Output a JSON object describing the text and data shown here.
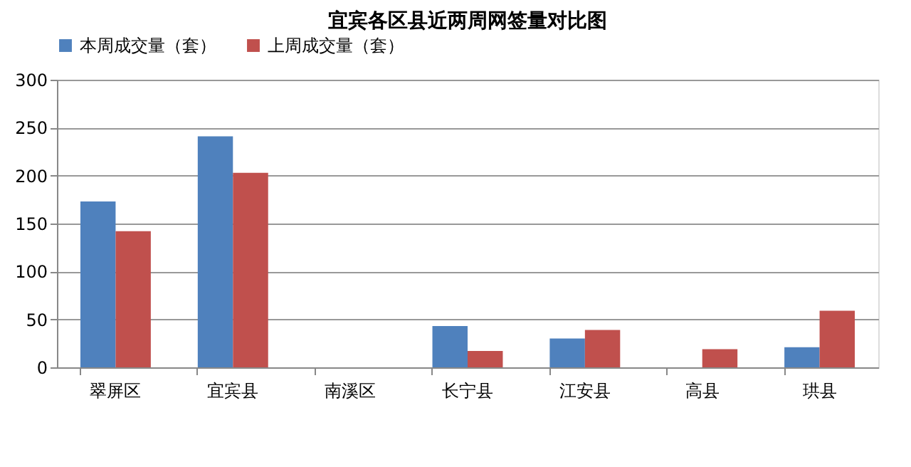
{
  "chart_data": {
    "type": "bar",
    "title": "宜宾各区县近两周网签量对比图",
    "categories": [
      "翠屏区",
      "宜宾县",
      "南溪区",
      "长宁县",
      "江安县",
      "高县",
      "珙县"
    ],
    "series": [
      {
        "name": "本周成交量（套）",
        "color": "#4f81bd",
        "values": [
          173,
          241,
          0,
          43,
          30,
          null,
          21
        ]
      },
      {
        "name": "上周成交量（套）",
        "color": "#c0504d",
        "values": [
          142,
          203,
          0,
          17,
          39,
          19,
          59
        ]
      }
    ],
    "ylim": [
      0,
      300
    ],
    "yticks": [
      0,
      50,
      100,
      150,
      200,
      250,
      300
    ],
    "grid": "y",
    "legend": "top"
  }
}
